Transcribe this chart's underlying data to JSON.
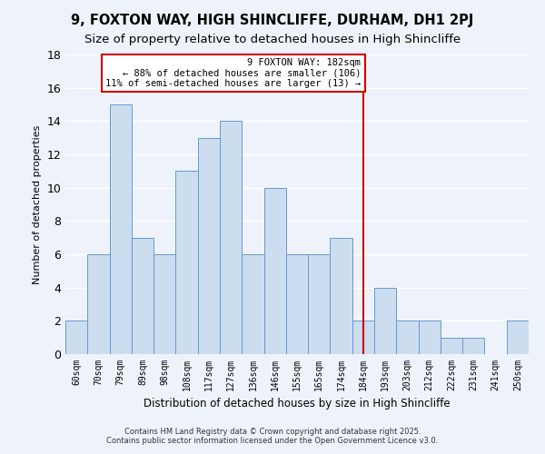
{
  "title": "9, FOXTON WAY, HIGH SHINCLIFFE, DURHAM, DH1 2PJ",
  "subtitle": "Size of property relative to detached houses in High Shincliffe",
  "xlabel": "Distribution of detached houses by size in High Shincliffe",
  "ylabel": "Number of detached properties",
  "bar_labels": [
    "60sqm",
    "70sqm",
    "79sqm",
    "89sqm",
    "98sqm",
    "108sqm",
    "117sqm",
    "127sqm",
    "136sqm",
    "146sqm",
    "155sqm",
    "165sqm",
    "174sqm",
    "184sqm",
    "193sqm",
    "203sqm",
    "212sqm",
    "222sqm",
    "231sqm",
    "241sqm",
    "250sqm"
  ],
  "bar_heights": [
    2,
    6,
    15,
    7,
    6,
    11,
    13,
    14,
    6,
    10,
    6,
    6,
    7,
    2,
    4,
    2,
    2,
    1,
    1,
    0,
    2
  ],
  "bar_color": "#ccddf0",
  "bar_edge_color": "#6699cc",
  "vline_index": 13,
  "vline_color": "#cc0000",
  "annotation_title": "9 FOXTON WAY: 182sqm",
  "annotation_line1": "← 88% of detached houses are smaller (106)",
  "annotation_line2": "11% of semi-detached houses are larger (13) →",
  "annotation_box_color": "#ffffff",
  "annotation_box_edge": "#cc0000",
  "ylim": [
    0,
    18
  ],
  "yticks": [
    0,
    2,
    4,
    6,
    8,
    10,
    12,
    14,
    16,
    18
  ],
  "footnote1": "Contains HM Land Registry data © Crown copyright and database right 2025.",
  "footnote2": "Contains public sector information licensed under the Open Government Licence v3.0.",
  "background_color": "#eef3fb",
  "grid_color": "#ffffff",
  "title_fontsize": 10.5,
  "subtitle_fontsize": 9.5,
  "ylabel_fontsize": 8,
  "xlabel_fontsize": 8.5
}
